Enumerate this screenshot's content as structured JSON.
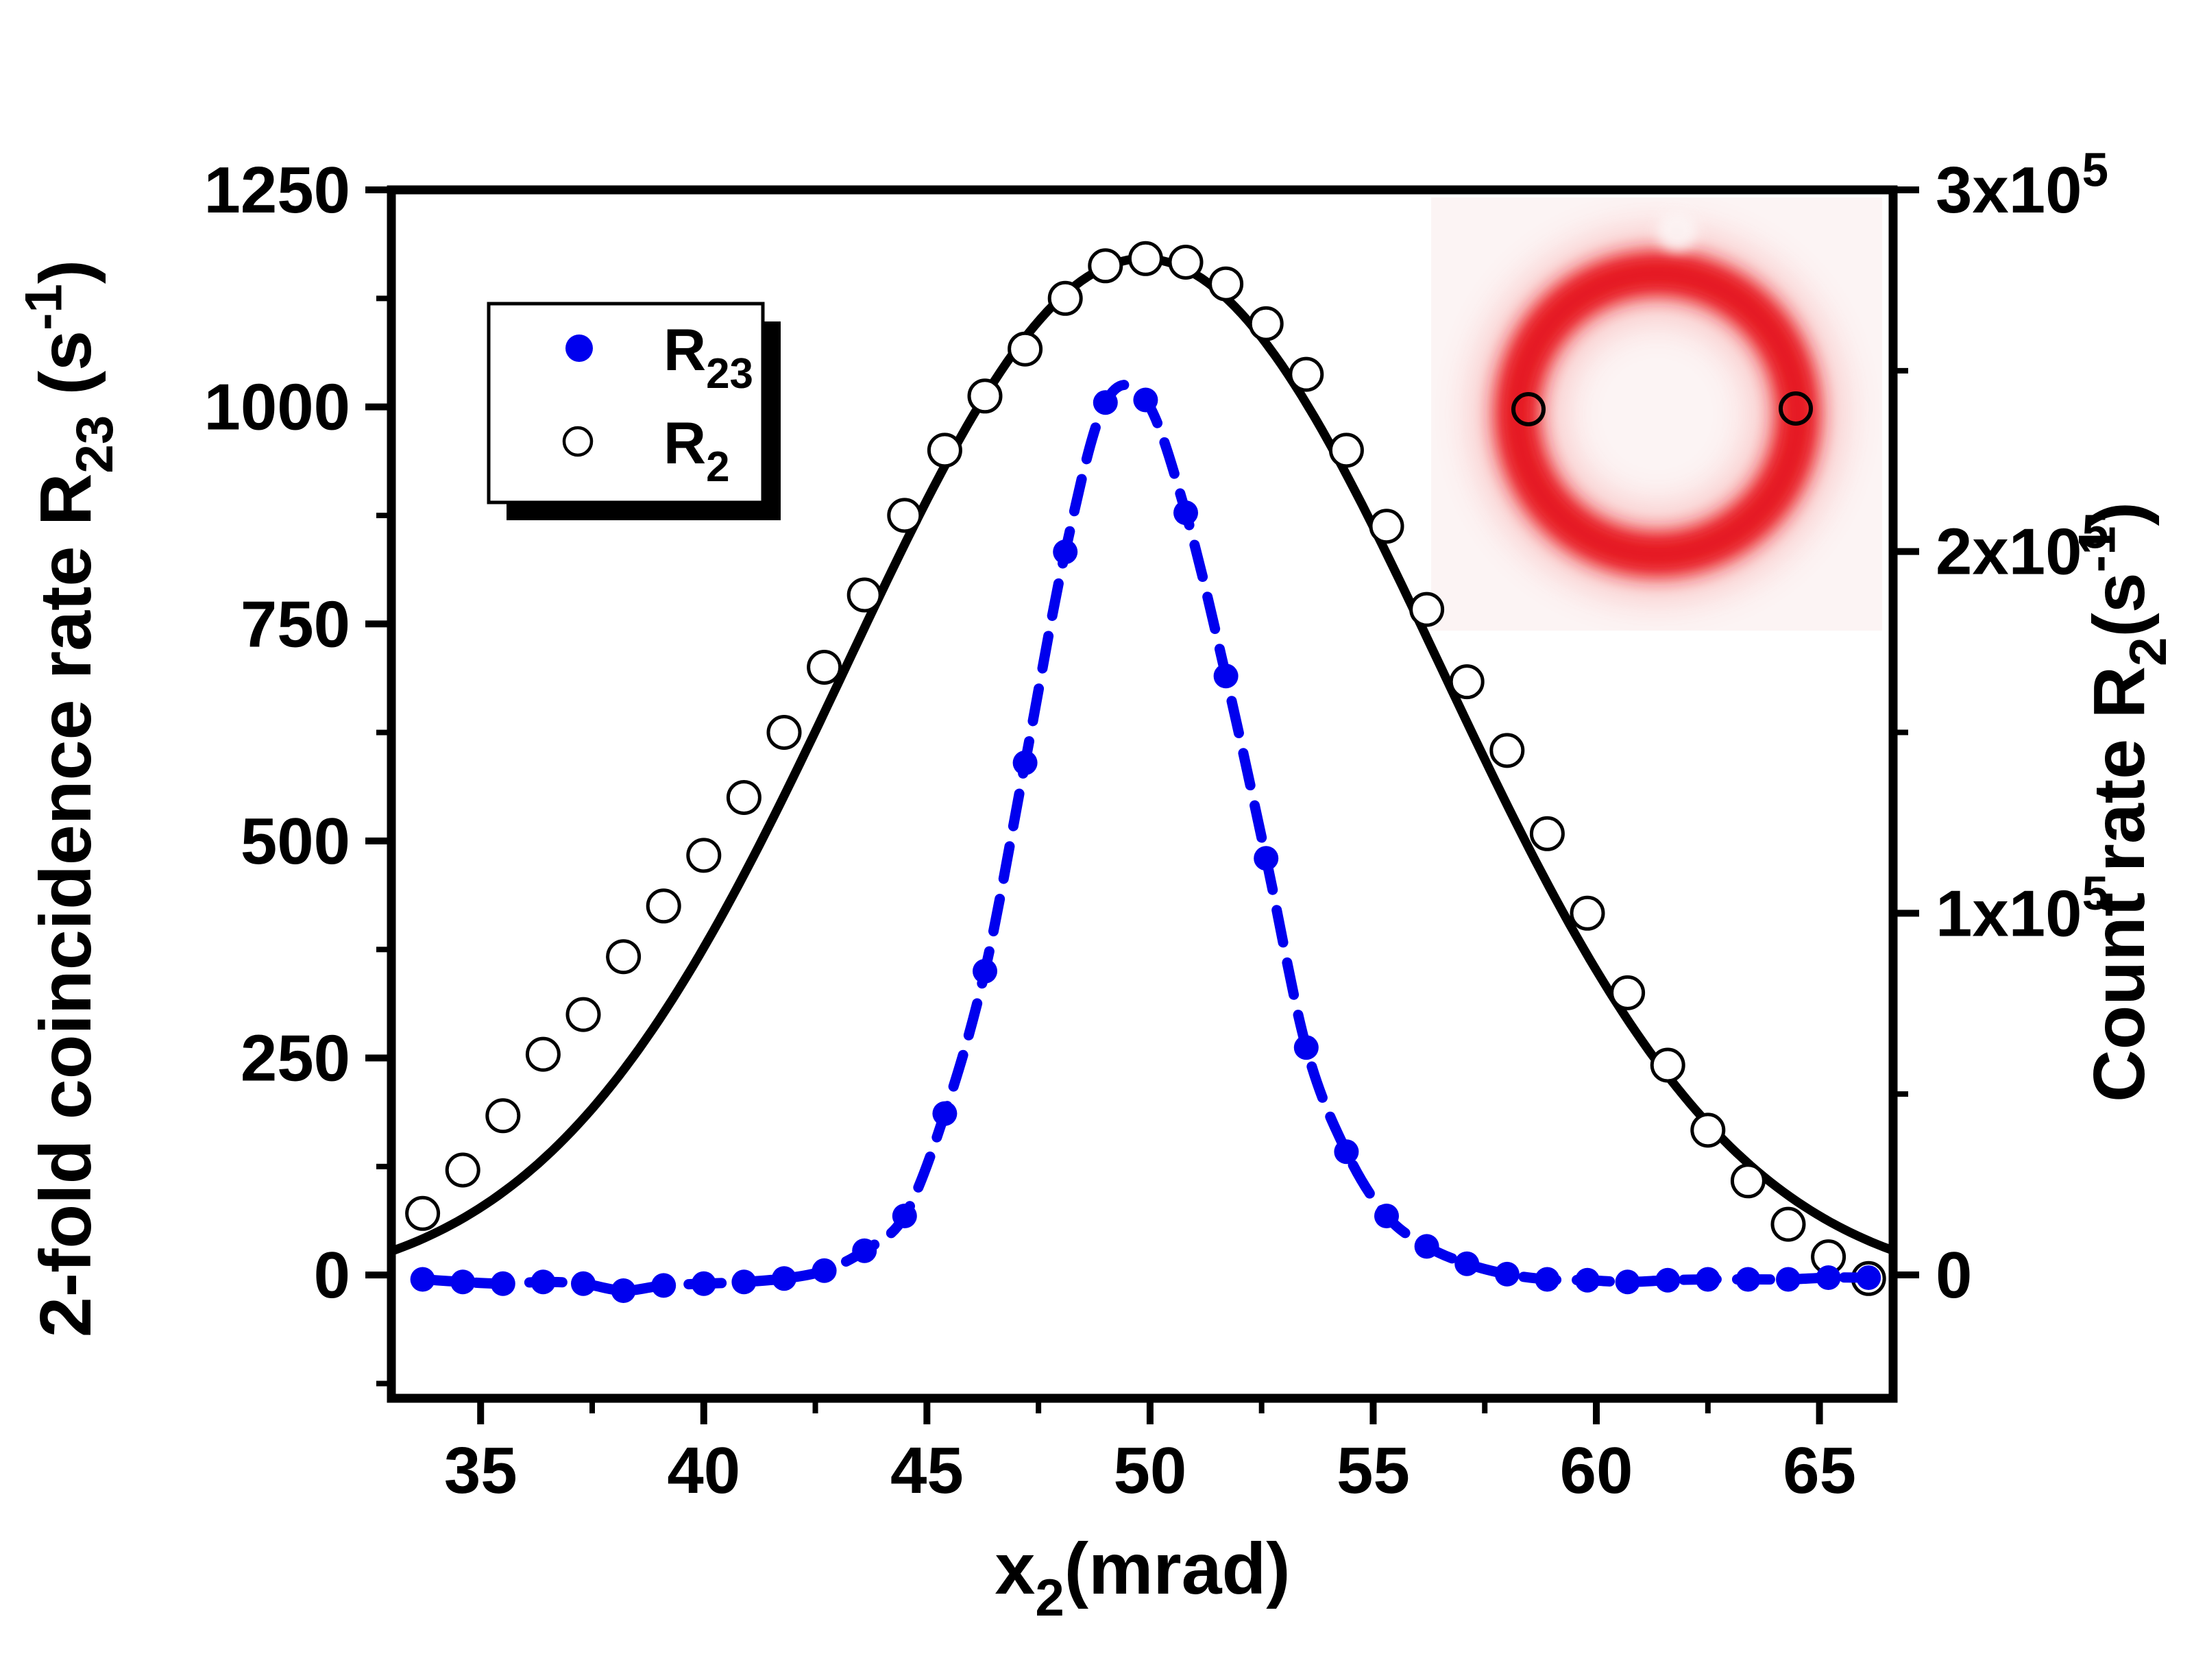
{
  "figure": {
    "background": "#ffffff",
    "colors": {
      "black": "#000000",
      "blue": "#0000ee",
      "ring_red": "#ea1b22",
      "inset_bg": "#fcf4f4"
    }
  },
  "chart_data": {
    "type": "scatter",
    "title": "",
    "x_axis": {
      "label_parts": [
        {
          "t": "x"
        },
        {
          "t": "2",
          "sub": true
        },
        {
          "t": "(mrad)"
        }
      ],
      "range": [
        33.0,
        66.65
      ],
      "major_ticks": [
        {
          "v": 35,
          "label": "35"
        },
        {
          "v": 40,
          "label": "40"
        },
        {
          "v": 45,
          "label": "45"
        },
        {
          "v": 50,
          "label": "50"
        },
        {
          "v": 55,
          "label": "55"
        },
        {
          "v": 60,
          "label": "60"
        },
        {
          "v": 65,
          "label": "65"
        }
      ],
      "minor_ticks": [
        37.5,
        42.5,
        47.5,
        52.5,
        57.5,
        62.5
      ]
    },
    "left_axis": {
      "label_parts": [
        {
          "t": "2-fold coincidence rate R"
        },
        {
          "t": "23",
          "sub": true
        },
        {
          "t": " (s"
        },
        {
          "t": "-1",
          "sup": true
        },
        {
          "t": ")"
        }
      ],
      "range": [
        -142,
        1250
      ],
      "major_ticks": [
        {
          "v": 0,
          "parts": [
            {
              "t": "0"
            }
          ]
        },
        {
          "v": 250,
          "parts": [
            {
              "t": "250"
            }
          ]
        },
        {
          "v": 500,
          "parts": [
            {
              "t": "500"
            }
          ]
        },
        {
          "v": 750,
          "parts": [
            {
              "t": "750"
            }
          ]
        },
        {
          "v": 1000,
          "parts": [
            {
              "t": "1000"
            }
          ]
        },
        {
          "v": 1250,
          "parts": [
            {
              "t": "1250"
            }
          ]
        }
      ],
      "minor_ticks": [
        -125,
        125,
        375,
        625,
        875,
        1125
      ]
    },
    "right_axis": {
      "label_parts": [
        {
          "t": "Count rate R"
        },
        {
          "t": "2",
          "sub": true
        },
        {
          "t": "(s"
        },
        {
          "t": "-1",
          "sup": true
        },
        {
          "t": ")"
        }
      ],
      "range": [
        -34110,
        300000
      ],
      "major_ticks": [
        {
          "v": 0,
          "parts": [
            {
              "t": "0"
            }
          ]
        },
        {
          "v": 100000,
          "parts": [
            {
              "t": "1x10"
            },
            {
              "t": "5",
              "sup": true
            }
          ]
        },
        {
          "v": 200000,
          "parts": [
            {
              "t": "2x10"
            },
            {
              "t": "5",
              "sup": true
            }
          ]
        },
        {
          "v": 300000,
          "parts": [
            {
              "t": "3x10"
            },
            {
              "t": "5",
              "sup": true
            }
          ]
        }
      ],
      "minor_ticks": [
        50000,
        150000,
        250000
      ]
    },
    "series": [
      {
        "id": "R23",
        "legend_parts": [
          {
            "t": "R"
          },
          {
            "t": "23",
            "sub": true
          }
        ],
        "axis": "left",
        "color": "#0000ee",
        "marker": "filled-circle",
        "line": "dashed-spline",
        "x": [
          33.7,
          34.6,
          35.5,
          36.4,
          37.3,
          38.2,
          39.1,
          40.0,
          40.9,
          41.8,
          42.7,
          43.6,
          44.5,
          45.4,
          46.3,
          47.2,
          48.1,
          49.0,
          49.9,
          50.8,
          51.7,
          52.6,
          53.5,
          54.4,
          55.3,
          56.2,
          57.1,
          58.0,
          58.9,
          59.8,
          60.7,
          61.6,
          62.5,
          63.4,
          64.3,
          65.2,
          66.1
        ],
        "values": [
          -5,
          -8,
          -10,
          -8,
          -10,
          -18,
          -12,
          -10,
          -8,
          -4,
          5,
          28,
          68,
          186,
          350,
          590,
          833,
          1005,
          1008,
          878,
          690,
          480,
          262,
          142,
          68,
          33,
          13,
          1,
          -5,
          -6,
          -8,
          -6,
          -5,
          -5,
          -5,
          -3,
          -3
        ]
      },
      {
        "id": "R2",
        "legend_parts": [
          {
            "t": "R"
          },
          {
            "t": "2",
            "sub": true
          }
        ],
        "axis": "right",
        "color": "#000000",
        "marker": "open-circle",
        "line": "solid-gaussian-fit",
        "fit": {
          "type": "gaussian",
          "amplitude": 286000,
          "center": 49.85,
          "sigma": 6.65,
          "baseline": -5000
        },
        "x": [
          33.7,
          34.6,
          35.5,
          36.4,
          37.3,
          38.2,
          39.1,
          40.0,
          40.9,
          41.8,
          42.7,
          43.6,
          44.5,
          45.4,
          46.3,
          47.2,
          48.1,
          49.0,
          49.9,
          50.8,
          51.7,
          52.6,
          53.5,
          54.4,
          55.3,
          56.2,
          57.1,
          58.0,
          58.9,
          59.8,
          60.7,
          61.6,
          62.5,
          63.4,
          64.3,
          65.2,
          66.1
        ],
        "values": [
          17000,
          29000,
          44000,
          61000,
          72000,
          88000,
          102000,
          116000,
          132000,
          150000,
          168000,
          188000,
          210000,
          228000,
          243000,
          256000,
          270000,
          279000,
          281000,
          280000,
          274000,
          263000,
          249000,
          228000,
          207000,
          184000,
          164000,
          145000,
          122000,
          100000,
          78000,
          58000,
          40000,
          26000,
          14000,
          5000,
          -1000
        ]
      }
    ],
    "legend": {
      "position": "top-left"
    },
    "inset": {
      "type": "beam-ring-image",
      "bg": "#fcf4f4",
      "ring_color": "#ea1b22",
      "markers": [
        "left-detector-circle",
        "right-detector-circle"
      ]
    }
  }
}
